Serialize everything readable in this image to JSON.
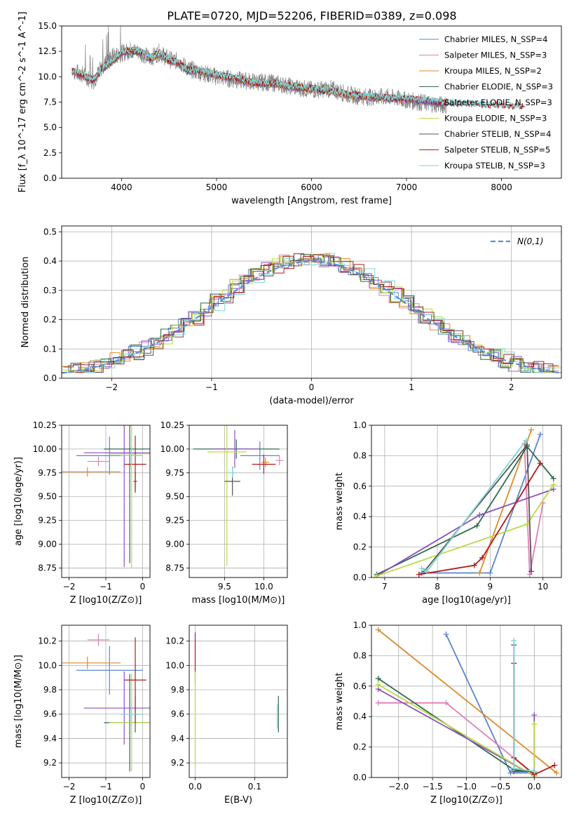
{
  "title": "PLATE=0720, MJD=52206, FIBERID=0389, z=0.098",
  "colors": {
    "Chabrier MILES": "#5b84cf",
    "Salpeter MILES": "#e07fb8",
    "Kroupa MILES": "#e08a2a",
    "Chabrier ELODIE": "#2e6b4d",
    "Salpeter ELODIE": "#8e4fc0",
    "Kroupa ELODIE": "#b9da40",
    "Chabrier STELIB": "#7a4040",
    "Salpeter STELIB": "#b51919",
    "Kroupa STELIB": "#7fd6d8",
    "data": "#808080",
    "normal": "#5b8fd9"
  },
  "chart_data": [
    {
      "type": "line",
      "panel": "spectrum",
      "xlabel": "wavelength [Angstrom, rest frame]",
      "ylabel": "Flux [f_λ 10^-17 erg cm^-2 s^-1 A^-1]",
      "xlim": [
        3370,
        8630
      ],
      "ylim": [
        0,
        15
      ],
      "xticks": [
        "4000",
        "5000",
        "6000",
        "7000",
        "8000"
      ],
      "yticks": [
        "0.0",
        "2.5",
        "5.0",
        "7.5",
        "10.0",
        "12.5",
        "15.0"
      ],
      "legend": [
        {
          "label": "Chabrier MILES, N_SSP=4",
          "color": "#5b84cf"
        },
        {
          "label": "Salpeter MILES, N_SSP=3",
          "color": "#e07fb8"
        },
        {
          "label": "Kroupa MILES, N_SSP=2",
          "color": "#e08a2a"
        },
        {
          "label": "Chabrier ELODIE, N_SSP=3",
          "color": "#2e6b4d"
        },
        {
          "label": "Salpeter ELODIE, N_SSP=3",
          "color": "#8e4fc0"
        },
        {
          "label": "Kroupa ELODIE, N_SSP=3",
          "color": "#b9da40"
        },
        {
          "label": "Chabrier STELIB, N_SSP=4",
          "color": "#555555"
        },
        {
          "label": "Salpeter STELIB, N_SSP=5",
          "color": "#b51919"
        },
        {
          "label": "Kroupa STELIB, N_SSP=3",
          "color": "#7fd6d8"
        }
      ],
      "series": [
        {
          "name": "data",
          "color": "#808080",
          "x": [
            3500,
            3600,
            3700,
            3800,
            3900,
            4000,
            4100,
            4200,
            4300,
            4400,
            4500,
            4600,
            4700,
            4800,
            5000,
            5200,
            5400,
            5600,
            5800,
            6000,
            6200,
            6400,
            6600,
            6800,
            7000,
            7200,
            7400
          ],
          "y": [
            10.5,
            10.2,
            9.5,
            11.0,
            12.0,
            12.3,
            12.6,
            12.4,
            11.8,
            12.4,
            11.7,
            11.5,
            10.8,
            10.5,
            10.0,
            9.7,
            9.5,
            9.4,
            9.0,
            8.7,
            8.8,
            8.2,
            8.0,
            8.0,
            7.7,
            7.4,
            7.2
          ]
        },
        {
          "name": "model",
          "color": "#7fd6d8",
          "x": [
            3500,
            3600,
            3700,
            3800,
            3900,
            4000,
            4100,
            4200,
            4300,
            4400,
            4500,
            4600,
            4700,
            4800,
            5000,
            5200,
            5400,
            5600,
            5800,
            6000,
            6200,
            6400,
            6600,
            6800,
            7000,
            7200,
            7400,
            7600,
            7800,
            8000,
            8200
          ],
          "y": [
            10.5,
            10.1,
            9.6,
            10.8,
            11.5,
            12.3,
            12.6,
            12.4,
            11.8,
            12.3,
            11.6,
            11.4,
            10.6,
            10.6,
            10.2,
            9.8,
            9.4,
            9.3,
            9.0,
            8.8,
            8.6,
            8.2,
            8.0,
            7.9,
            7.8,
            7.6,
            7.4,
            7.3,
            7.2,
            7.1,
            7.0
          ]
        }
      ]
    },
    {
      "type": "line",
      "panel": "residuals",
      "xlabel": "(data-model)/error",
      "ylabel": "Normed distribution",
      "xlim": [
        -2.5,
        2.5
      ],
      "ylim": [
        0,
        0.52
      ],
      "xticks": [
        "−2",
        "−1",
        "0",
        "1",
        "2"
      ],
      "yticks": [
        "0.0",
        "0.1",
        "0.2",
        "0.3",
        "0.4",
        "0.5"
      ],
      "legend": [
        {
          "label": "N(0,1)",
          "color": "#5b8fd9"
        }
      ],
      "series": [
        {
          "name": "N(0,1)",
          "x": [
            -2.5,
            -2.0,
            -1.5,
            -1.0,
            -0.5,
            0.0,
            0.5,
            1.0,
            1.5,
            2.0,
            2.5
          ],
          "y": [
            0.018,
            0.054,
            0.13,
            0.242,
            0.352,
            0.399,
            0.352,
            0.242,
            0.13,
            0.054,
            0.018
          ]
        }
      ]
    },
    {
      "type": "scatter",
      "panel": "age-vs-Z",
      "xlabel": "Z [log10(Z/Z⊙)]",
      "ylabel": "age  [log10(age/yr)]",
      "xlim": [
        -2.2,
        0.2
      ],
      "ylim": [
        8.65,
        10.25
      ],
      "xticks": [
        "−2",
        "−1",
        "0"
      ],
      "yticks": [
        "8.75",
        "9.00",
        "9.25",
        "9.50",
        "9.75",
        "10.00",
        "10.25"
      ],
      "points": [
        {
          "x": -0.9,
          "y": 9.93,
          "xerr": 0.9,
          "yerr": 0.2,
          "color": "#5b84cf"
        },
        {
          "x": -1.2,
          "y": 9.87,
          "xerr": 0.3,
          "yerr": 0.05,
          "color": "#e07fb8"
        },
        {
          "x": -1.5,
          "y": 9.76,
          "xerr": 0.9,
          "yerr": 0.05,
          "color": "#e08a2a"
        },
        {
          "x": -0.35,
          "y": 10.0,
          "xerr": 0.7,
          "yerr": 1.2,
          "color": "#2e6b4d"
        },
        {
          "x": -0.5,
          "y": 9.96,
          "xerr": 1.1,
          "yerr": 1.2,
          "color": "#8e4fc0"
        },
        {
          "x": -0.3,
          "y": 9.95,
          "xerr": 0.6,
          "yerr": 1.2,
          "color": "#b9da40"
        },
        {
          "x": -0.2,
          "y": 9.66,
          "xerr": 0.05,
          "yerr": 0.1,
          "color": "#555555"
        },
        {
          "x": -0.2,
          "y": 9.84,
          "xerr": 0.3,
          "yerr": 0.3,
          "color": "#b51919"
        },
        {
          "x": -0.3,
          "y": 9.93,
          "xerr": 0.3,
          "yerr": 0.1,
          "color": "#7fd6d8"
        }
      ]
    },
    {
      "type": "scatter",
      "panel": "age-vs-mass",
      "xlabel": "mass [log10(M/M⊙)]",
      "xlim": [
        9.05,
        10.3
      ],
      "ylim": [
        8.65,
        10.25
      ],
      "xticks": [
        "9.5",
        "10.0"
      ],
      "yticks": [
        "8.75",
        "9.00",
        "9.25",
        "9.50",
        "9.75",
        "10.00",
        "10.25"
      ],
      "points": [
        {
          "x": 9.95,
          "y": 9.93,
          "xerr": 0.25,
          "yerr": 0.15,
          "color": "#5b84cf"
        },
        {
          "x": 10.2,
          "y": 9.88,
          "xerr": 0.05,
          "yerr": 0.05,
          "color": "#e07fb8"
        },
        {
          "x": 10.02,
          "y": 9.86,
          "xerr": 0.05,
          "yerr": 0.05,
          "color": "#e08a2a"
        },
        {
          "x": 9.65,
          "y": 10.0,
          "xerr": 0.55,
          "yerr": 0.1,
          "color": "#2e6b4d"
        },
        {
          "x": 9.63,
          "y": 10.0,
          "xerr": 0.3,
          "yerr": 0.2,
          "color": "#8e4fc0"
        },
        {
          "x": 9.53,
          "y": 9.97,
          "xerr": 0.25,
          "yerr": 1.2,
          "color": "#b9da40"
        },
        {
          "x": 9.6,
          "y": 9.66,
          "xerr": 0.1,
          "yerr": 0.15,
          "color": "#555555"
        },
        {
          "x": 10.0,
          "y": 9.84,
          "xerr": 0.15,
          "yerr": 0.1,
          "color": "#b51919"
        },
        {
          "x": 9.6,
          "y": 9.75,
          "xerr": 0.05,
          "yerr": 0.05,
          "color": "#7fd6d8"
        }
      ]
    },
    {
      "type": "line",
      "panel": "weight-vs-age",
      "xlabel": "age  [log10(age/yr)]",
      "ylabel": "mass weight",
      "xlim": [
        6.75,
        10.35
      ],
      "ylim": [
        0,
        1.0
      ],
      "xticks": [
        "7",
        "8",
        "9",
        "10"
      ],
      "yticks": [
        "0.0",
        "0.2",
        "0.4",
        "0.6",
        "0.8",
        "1.0"
      ],
      "series": [
        {
          "name": "Chabrier MILES",
          "color": "#5b84cf",
          "x": [
            7.7,
            9.0,
            9.95
          ],
          "y": [
            0.03,
            0.03,
            0.94
          ]
        },
        {
          "name": "Salpeter MILES",
          "color": "#e07fb8",
          "x": [
            9.65,
            9.75,
            10.0
          ],
          "y": [
            0.88,
            0.02,
            0.49
          ]
        },
        {
          "name": "Kroupa MILES",
          "color": "#e08a2a",
          "x": [
            8.8,
            9.78
          ],
          "y": [
            0.03,
            0.97
          ]
        },
        {
          "name": "Chabrier ELODIE",
          "color": "#2e6b4d",
          "x": [
            6.85,
            8.75,
            9.7,
            10.2
          ],
          "y": [
            0.02,
            0.34,
            0.86,
            0.65
          ]
        },
        {
          "name": "Salpeter ELODIE",
          "color": "#8e4fc0",
          "x": [
            6.85,
            8.8,
            10.2
          ],
          "y": [
            0.01,
            0.41,
            0.58
          ]
        },
        {
          "name": "Kroupa ELODIE",
          "color": "#b9da40",
          "x": [
            6.85,
            9.7,
            10.2
          ],
          "y": [
            0.01,
            0.35,
            0.61
          ]
        },
        {
          "name": "Chabrier STELIB",
          "color": "#555555",
          "x": [
            7.75,
            9.7,
            9.78
          ],
          "y": [
            0.04,
            0.87,
            0.04
          ]
        },
        {
          "name": "Salpeter STELIB",
          "color": "#b51919",
          "x": [
            7.65,
            8.7,
            8.85,
            9.95
          ],
          "y": [
            0.02,
            0.08,
            0.13,
            0.75
          ]
        },
        {
          "name": "Kroupa STELIB",
          "color": "#7fd6d8",
          "x": [
            7.7,
            7.8,
            9.68
          ],
          "y": [
            0.06,
            0.04,
            0.9
          ]
        }
      ]
    },
    {
      "type": "scatter",
      "panel": "mass-vs-Z",
      "xlabel": "Z [log10(Z/Z⊙)]",
      "ylabel": "mass [log10(M/M⊙)]",
      "xlim": [
        -2.2,
        0.2
      ],
      "ylim": [
        9.08,
        10.33
      ],
      "xticks": [
        "−2",
        "−1",
        "0"
      ],
      "yticks": [
        "9.2",
        "9.4",
        "9.6",
        "9.8",
        "10.0",
        "10.2"
      ],
      "points": [
        {
          "x": -0.9,
          "y": 9.96,
          "xerr": 0.9,
          "yerr": 0.2,
          "color": "#5b84cf"
        },
        {
          "x": -1.2,
          "y": 10.21,
          "xerr": 0.3,
          "yerr": 0.05,
          "color": "#e07fb8"
        },
        {
          "x": -1.5,
          "y": 10.02,
          "xerr": 0.9,
          "yerr": 0.05,
          "color": "#e08a2a"
        },
        {
          "x": -0.35,
          "y": 9.53,
          "xerr": 0.7,
          "yerr": 0.4,
          "color": "#2e6b4d"
        },
        {
          "x": -0.5,
          "y": 9.65,
          "xerr": 1.1,
          "yerr": 0.3,
          "color": "#8e4fc0"
        },
        {
          "x": -0.3,
          "y": 9.53,
          "xerr": 0.6,
          "yerr": 0.4,
          "color": "#b9da40"
        },
        {
          "x": -0.2,
          "y": 9.6,
          "xerr": 0.05,
          "yerr": 0.15,
          "color": "#555555"
        },
        {
          "x": -0.2,
          "y": 9.88,
          "xerr": 0.3,
          "yerr": 0.35,
          "color": "#b51919"
        },
        {
          "x": -0.3,
          "y": 9.6,
          "xerr": 0.3,
          "yerr": 0.1,
          "color": "#7fd6d8"
        }
      ]
    },
    {
      "type": "scatter",
      "panel": "mass-vs-ebv",
      "xlabel": "E(B-V)",
      "xlim": [
        -0.01,
        0.155
      ],
      "ylim": [
        9.08,
        10.33
      ],
      "xticks": [
        "0.0",
        "0.1"
      ],
      "yticks": [
        "9.2",
        "9.4",
        "9.6",
        "9.8",
        "10.0",
        "10.2"
      ],
      "points": [
        {
          "x": 0.0,
          "y": 10.06,
          "yerr": 0.21,
          "color": "#b51919"
        },
        {
          "x": 0.0,
          "y": 9.55,
          "yerr": 0.4,
          "color": "#b9da40"
        },
        {
          "x": 0.14,
          "y": 9.6,
          "yerr": 0.15,
          "color": "#2e6b4d"
        },
        {
          "x": 0.138,
          "y": 9.58,
          "yerr": 0.1,
          "color": "#7fd6d8"
        }
      ]
    },
    {
      "type": "line",
      "panel": "weight-vs-Z",
      "xlabel": "Z [log10(Z/Z⊙)]",
      "ylabel": "mass weight",
      "xlim": [
        -2.4,
        0.4
      ],
      "ylim": [
        0,
        1.0
      ],
      "xticks": [
        "−2.0",
        "−1.5",
        "−1.0",
        "−0.5",
        "0.0"
      ],
      "yticks": [
        "0.0",
        "0.2",
        "0.4",
        "0.6",
        "0.8",
        "1.0"
      ],
      "series": [
        {
          "name": "Chabrier MILES",
          "color": "#5b84cf",
          "x": [
            -1.3,
            -0.35,
            0.0
          ],
          "y": [
            0.94,
            0.03,
            0.03
          ]
        },
        {
          "name": "Salpeter MILES",
          "color": "#e07fb8",
          "x": [
            -2.3,
            -1.3,
            0.0
          ],
          "y": [
            0.49,
            0.49,
            0.02
          ]
        },
        {
          "name": "Kroupa MILES",
          "color": "#e08a2a",
          "x": [
            -2.3,
            0.33
          ],
          "y": [
            0.97,
            0.03
          ]
        },
        {
          "name": "Chabrier ELODIE",
          "color": "#2e6b4d",
          "x": [
            -2.3,
            -0.3,
            0.0
          ],
          "y": [
            0.65,
            0.05,
            0.04
          ]
        },
        {
          "name": "Salpeter ELODIE",
          "color": "#8e4fc0",
          "x": [
            -2.3,
            0.0,
            0.0
          ],
          "y": [
            0.58,
            0.01,
            0.41
          ]
        },
        {
          "name": "Kroupa ELODIE",
          "color": "#b9da40",
          "x": [
            -2.3,
            0.0,
            0.0
          ],
          "y": [
            0.61,
            0.01,
            0.35
          ]
        },
        {
          "name": "Chabrier STELIB",
          "color": "#555555",
          "x": [
            -0.3,
            -0.3,
            0.0
          ],
          "y": [
            0.87,
            0.04,
            0.04
          ]
        },
        {
          "name": "Salpeter STELIB",
          "color": "#b51919",
          "x": [
            -0.3,
            -0.3,
            0.0,
            0.3
          ],
          "y": [
            0.75,
            0.13,
            0.02,
            0.08
          ]
        },
        {
          "name": "Kroupa STELIB",
          "color": "#7fd6d8",
          "x": [
            -0.3,
            -0.3,
            0.0
          ],
          "y": [
            0.9,
            0.06,
            0.04
          ]
        }
      ]
    }
  ]
}
